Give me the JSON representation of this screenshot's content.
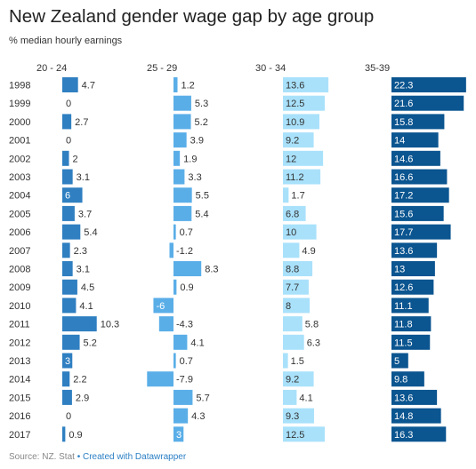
{
  "chart_data": {
    "type": "bar",
    "title": "New Zealand gender wage gap by age group",
    "subtitle": "% median hourly earnings",
    "categories": [
      "1998",
      "1999",
      "2000",
      "2001",
      "2002",
      "2003",
      "2004",
      "2005",
      "2006",
      "2007",
      "2008",
      "2009",
      "2010",
      "2011",
      "2012",
      "2013",
      "2014",
      "2015",
      "2016",
      "2017"
    ],
    "series": [
      {
        "name": "20 - 24",
        "color": "#2f7fc1",
        "values": [
          4.7,
          0,
          2.7,
          0,
          2,
          3.1,
          6,
          3.7,
          5.4,
          2.3,
          3.1,
          4.5,
          4.1,
          10.3,
          5.2,
          3,
          2.2,
          2.9,
          0,
          0.9
        ]
      },
      {
        "name": "25 - 29",
        "color": "#5aaee8",
        "values": [
          1.2,
          5.3,
          5.2,
          3.9,
          1.9,
          3.3,
          5.5,
          5.4,
          0.7,
          -1.2,
          8.3,
          0.9,
          -6,
          -4.3,
          4.1,
          0.7,
          -7.9,
          5.7,
          4.3,
          3
        ]
      },
      {
        "name": "30 - 34",
        "color": "#a9e1fb",
        "values": [
          13.6,
          12.5,
          10.9,
          9.2,
          12,
          11.2,
          1.7,
          6.8,
          10,
          4.9,
          8.8,
          7.7,
          8,
          5.8,
          6.3,
          1.5,
          9.2,
          4.1,
          9.3,
          12.5
        ]
      },
      {
        "name": "35-39",
        "color": "#0b5590",
        "values": [
          22.3,
          21.6,
          15.8,
          14,
          14.6,
          16.6,
          17.2,
          15.6,
          17.7,
          13.6,
          13,
          12.6,
          11.1,
          11.8,
          11.5,
          5,
          9.8,
          13.6,
          14.8,
          16.3
        ]
      }
    ],
    "grid": false,
    "legend": "column headers"
  },
  "footer": {
    "source": "Source: NZ. Stat",
    "separator": "•",
    "credit": "Created with Datawrapper"
  }
}
